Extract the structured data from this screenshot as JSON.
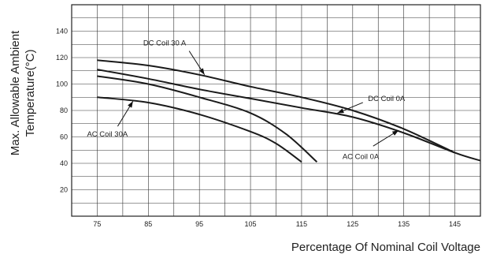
{
  "chart_data": {
    "type": "line",
    "title": "",
    "xlabel": "Percentage Of Nominal Coil Voltage",
    "ylabel_lines": [
      "Max. Allowable Ambient",
      "Temperature(°C)"
    ],
    "xlim": [
      70,
      150
    ],
    "ylim": [
      0,
      160
    ],
    "x_ticks": [
      75,
      85,
      95,
      105,
      115,
      125,
      135,
      145
    ],
    "y_ticks": [
      20,
      40,
      60,
      80,
      100,
      120,
      140
    ],
    "grid": true,
    "series": [
      {
        "name": "DC Coil 30 A",
        "points": [
          [
            75,
            118
          ],
          [
            85,
            114
          ],
          [
            95,
            107
          ],
          [
            105,
            98
          ],
          [
            115,
            90
          ],
          [
            125,
            80
          ],
          [
            135,
            66
          ],
          [
            145,
            48
          ]
        ]
      },
      {
        "name": "DC Coil 0A",
        "points": [
          [
            75,
            111
          ],
          [
            85,
            104
          ],
          [
            95,
            96
          ],
          [
            105,
            89
          ],
          [
            115,
            82
          ],
          [
            125,
            75
          ],
          [
            135,
            63
          ],
          [
            145,
            48
          ],
          [
            150,
            42
          ]
        ]
      },
      {
        "name": "AC Coil 0A",
        "points": [
          [
            75,
            106
          ],
          [
            85,
            100
          ],
          [
            95,
            90
          ],
          [
            105,
            78
          ],
          [
            112,
            62
          ],
          [
            118,
            41
          ]
        ]
      },
      {
        "name": "AC Coil 30A",
        "points": [
          [
            75,
            90
          ],
          [
            85,
            86
          ],
          [
            95,
            77
          ],
          [
            105,
            64
          ],
          [
            110,
            55
          ],
          [
            115,
            41
          ]
        ]
      }
    ],
    "annotations": [
      {
        "text": "DC Coil 30 A",
        "series": "DC Coil 30 A",
        "label_at": [
          84,
          131
        ],
        "anchor": "start",
        "arrow_from": [
          93,
          125
        ],
        "arrow_to": [
          96,
          107
        ]
      },
      {
        "text": "DC Coil 0A",
        "series": "DC Coil 0A",
        "label_at": [
          128,
          89
        ],
        "anchor": "start",
        "arrow_from": [
          127,
          86
        ],
        "arrow_to": [
          122,
          78
        ]
      },
      {
        "text": "AC Coil 0A",
        "series": "AC Coil 0A",
        "label_at": [
          123,
          45
        ],
        "anchor": "start",
        "arrow_from": [
          129,
          53
        ],
        "arrow_to": [
          134,
          65
        ]
      },
      {
        "text": "AC Coil 30A",
        "series": "AC Coil 30A",
        "label_at": [
          73,
          62
        ],
        "anchor": "start",
        "arrow_from": [
          79,
          68
        ],
        "arrow_to": [
          82,
          87
        ]
      }
    ]
  }
}
